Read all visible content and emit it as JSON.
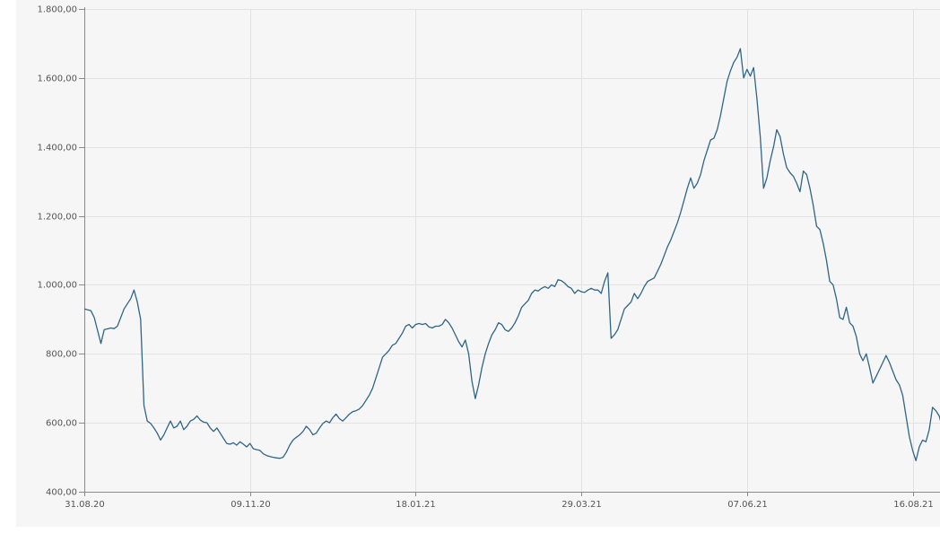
{
  "chart_data": {
    "type": "line",
    "title": "",
    "xlabel": "",
    "ylabel": "",
    "ylim": [
      400,
      1800
    ],
    "grid": true,
    "y_ticks": [
      {
        "value": 400,
        "label": "400,00"
      },
      {
        "value": 600,
        "label": "600,00"
      },
      {
        "value": 800,
        "label": "800,00"
      },
      {
        "value": 1000,
        "label": "1.000,00"
      },
      {
        "value": 1200,
        "label": "1.200,00"
      },
      {
        "value": 1400,
        "label": "1.400,00"
      },
      {
        "value": 1600,
        "label": "1.600,00"
      },
      {
        "value": 1800,
        "label": "1.800,00"
      }
    ],
    "x_ticks": [
      "31.08.20",
      "09.11.20",
      "18.01.21",
      "29.03.21",
      "07.06.21",
      "16.08.21"
    ],
    "series": [
      {
        "color": "#2f6586",
        "points": [
          [
            0,
            930
          ],
          [
            2,
            925
          ],
          [
            3,
            905
          ],
          [
            5,
            830
          ],
          [
            6,
            870
          ],
          [
            8,
            875
          ],
          [
            9,
            873
          ],
          [
            10,
            880
          ],
          [
            12,
            930
          ],
          [
            14,
            960
          ],
          [
            15,
            985
          ],
          [
            16,
            950
          ],
          [
            17,
            900
          ],
          [
            18,
            650
          ],
          [
            19,
            605
          ],
          [
            20,
            598
          ],
          [
            21,
            585
          ],
          [
            22,
            570
          ],
          [
            23,
            550
          ],
          [
            24,
            565
          ],
          [
            25,
            585
          ],
          [
            26,
            605
          ],
          [
            27,
            585
          ],
          [
            28,
            590
          ],
          [
            29,
            605
          ],
          [
            30,
            580
          ],
          [
            31,
            590
          ],
          [
            32,
            605
          ],
          [
            33,
            610
          ],
          [
            34,
            620
          ],
          [
            35,
            608
          ],
          [
            36,
            602
          ],
          [
            37,
            600
          ],
          [
            38,
            585
          ],
          [
            39,
            575
          ],
          [
            40,
            585
          ],
          [
            41,
            570
          ],
          [
            42,
            555
          ],
          [
            43,
            540
          ],
          [
            44,
            538
          ],
          [
            45,
            542
          ],
          [
            46,
            535
          ],
          [
            47,
            545
          ],
          [
            48,
            538
          ],
          [
            49,
            530
          ],
          [
            50,
            540
          ],
          [
            51,
            525
          ],
          [
            52,
            522
          ],
          [
            53,
            520
          ],
          [
            54,
            510
          ],
          [
            55,
            505
          ],
          [
            56,
            502
          ],
          [
            57,
            500
          ],
          [
            58,
            498
          ],
          [
            59,
            497
          ],
          [
            60,
            500
          ],
          [
            61,
            515
          ],
          [
            62,
            535
          ],
          [
            63,
            550
          ],
          [
            64,
            558
          ],
          [
            65,
            565
          ],
          [
            66,
            575
          ],
          [
            67,
            590
          ],
          [
            68,
            580
          ],
          [
            69,
            565
          ],
          [
            70,
            570
          ],
          [
            71,
            585
          ],
          [
            72,
            598
          ],
          [
            73,
            605
          ],
          [
            74,
            600
          ],
          [
            75,
            615
          ],
          [
            76,
            625
          ],
          [
            77,
            612
          ],
          [
            78,
            605
          ],
          [
            79,
            615
          ],
          [
            80,
            625
          ],
          [
            81,
            632
          ],
          [
            82,
            635
          ],
          [
            83,
            640
          ],
          [
            84,
            650
          ],
          [
            85,
            665
          ],
          [
            86,
            680
          ],
          [
            87,
            700
          ],
          [
            88,
            730
          ],
          [
            89,
            760
          ],
          [
            90,
            790
          ],
          [
            91,
            800
          ],
          [
            92,
            810
          ],
          [
            93,
            825
          ],
          [
            94,
            830
          ],
          [
            95,
            845
          ],
          [
            96,
            860
          ],
          [
            97,
            880
          ],
          [
            98,
            885
          ],
          [
            99,
            875
          ],
          [
            100,
            885
          ],
          [
            101,
            888
          ],
          [
            102,
            885
          ],
          [
            103,
            888
          ],
          [
            104,
            878
          ],
          [
            105,
            875
          ],
          [
            106,
            880
          ],
          [
            107,
            880
          ],
          [
            108,
            885
          ],
          [
            109,
            900
          ],
          [
            110,
            890
          ],
          [
            111,
            875
          ],
          [
            112,
            855
          ],
          [
            113,
            835
          ],
          [
            114,
            820
          ],
          [
            115,
            840
          ],
          [
            116,
            800
          ],
          [
            117,
            720
          ],
          [
            118,
            670
          ],
          [
            119,
            710
          ],
          [
            120,
            760
          ],
          [
            121,
            800
          ],
          [
            122,
            830
          ],
          [
            123,
            855
          ],
          [
            124,
            870
          ],
          [
            125,
            890
          ],
          [
            126,
            885
          ],
          [
            127,
            870
          ],
          [
            128,
            865
          ],
          [
            129,
            875
          ],
          [
            130,
            890
          ],
          [
            131,
            910
          ],
          [
            132,
            935
          ],
          [
            133,
            945
          ],
          [
            134,
            955
          ],
          [
            135,
            975
          ],
          [
            136,
            985
          ],
          [
            137,
            982
          ],
          [
            138,
            990
          ],
          [
            139,
            995
          ],
          [
            140,
            990
          ],
          [
            141,
            1000
          ],
          [
            142,
            995
          ],
          [
            143,
            1015
          ],
          [
            144,
            1012
          ],
          [
            145,
            1005
          ],
          [
            146,
            995
          ],
          [
            147,
            990
          ],
          [
            148,
            975
          ],
          [
            149,
            985
          ],
          [
            150,
            980
          ],
          [
            151,
            978
          ],
          [
            152,
            985
          ],
          [
            153,
            990
          ],
          [
            154,
            985
          ],
          [
            155,
            985
          ],
          [
            156,
            975
          ],
          [
            157,
            1010
          ],
          [
            158,
            1035
          ],
          [
            159,
            845
          ],
          [
            160,
            855
          ],
          [
            161,
            870
          ],
          [
            162,
            900
          ],
          [
            163,
            930
          ],
          [
            164,
            940
          ],
          [
            165,
            950
          ],
          [
            166,
            975
          ],
          [
            167,
            960
          ],
          [
            168,
            975
          ],
          [
            169,
            995
          ],
          [
            170,
            1010
          ],
          [
            171,
            1015
          ],
          [
            172,
            1020
          ],
          [
            173,
            1040
          ],
          [
            174,
            1060
          ],
          [
            175,
            1085
          ],
          [
            176,
            1110
          ],
          [
            177,
            1130
          ],
          [
            178,
            1155
          ],
          [
            179,
            1180
          ],
          [
            180,
            1210
          ],
          [
            181,
            1245
          ],
          [
            182,
            1280
          ],
          [
            183,
            1310
          ],
          [
            184,
            1280
          ],
          [
            185,
            1295
          ],
          [
            186,
            1320
          ],
          [
            187,
            1360
          ],
          [
            188,
            1390
          ],
          [
            189,
            1420
          ],
          [
            190,
            1425
          ],
          [
            191,
            1450
          ],
          [
            192,
            1490
          ],
          [
            193,
            1540
          ],
          [
            194,
            1590
          ],
          [
            195,
            1620
          ],
          [
            196,
            1645
          ],
          [
            197,
            1660
          ],
          [
            198,
            1685
          ],
          [
            199,
            1600
          ],
          [
            200,
            1625
          ],
          [
            201,
            1605
          ],
          [
            202,
            1630
          ],
          [
            203,
            1540
          ],
          [
            204,
            1430
          ],
          [
            205,
            1280
          ],
          [
            206,
            1310
          ],
          [
            207,
            1360
          ],
          [
            208,
            1400
          ],
          [
            209,
            1450
          ],
          [
            210,
            1430
          ],
          [
            211,
            1380
          ],
          [
            212,
            1340
          ],
          [
            213,
            1325
          ],
          [
            214,
            1315
          ],
          [
            215,
            1295
          ],
          [
            216,
            1270
          ],
          [
            217,
            1330
          ],
          [
            218,
            1320
          ],
          [
            219,
            1280
          ],
          [
            220,
            1230
          ],
          [
            221,
            1170
          ],
          [
            222,
            1160
          ],
          [
            223,
            1120
          ],
          [
            224,
            1070
          ],
          [
            225,
            1010
          ],
          [
            226,
            1000
          ],
          [
            227,
            960
          ],
          [
            228,
            905
          ],
          [
            229,
            900
          ],
          [
            230,
            935
          ],
          [
            231,
            890
          ],
          [
            232,
            880
          ],
          [
            233,
            850
          ],
          [
            234,
            800
          ],
          [
            235,
            780
          ],
          [
            236,
            800
          ],
          [
            237,
            760
          ],
          [
            238,
            715
          ],
          [
            239,
            735
          ],
          [
            240,
            755
          ],
          [
            241,
            775
          ],
          [
            242,
            795
          ],
          [
            243,
            775
          ],
          [
            244,
            750
          ],
          [
            245,
            725
          ],
          [
            246,
            710
          ],
          [
            247,
            680
          ],
          [
            248,
            620
          ],
          [
            249,
            560
          ],
          [
            250,
            520
          ],
          [
            251,
            490
          ],
          [
            252,
            530
          ],
          [
            253,
            550
          ],
          [
            254,
            545
          ],
          [
            255,
            580
          ],
          [
            256,
            645
          ],
          [
            257,
            635
          ],
          [
            258,
            620
          ],
          [
            259,
            585
          ],
          [
            260,
            610
          ],
          [
            261,
            620
          ],
          [
            262,
            625
          ],
          [
            263,
            630
          ],
          [
            264,
            600
          ],
          [
            265,
            560
          ],
          [
            266,
            520
          ],
          [
            267,
            550
          ],
          [
            268,
            530
          ],
          [
            269,
            505
          ],
          [
            270,
            495
          ],
          [
            271,
            500
          ],
          [
            272,
            495
          ],
          [
            273,
            475
          ],
          [
            274,
            460
          ],
          [
            275,
            465
          ],
          [
            276,
            470
          ],
          [
            277,
            455
          ],
          [
            278,
            480
          ],
          [
            279,
            500
          ],
          [
            280,
            480
          ],
          [
            281,
            490
          ],
          [
            282,
            492
          ],
          [
            283,
            490
          ]
        ]
      }
    ]
  }
}
